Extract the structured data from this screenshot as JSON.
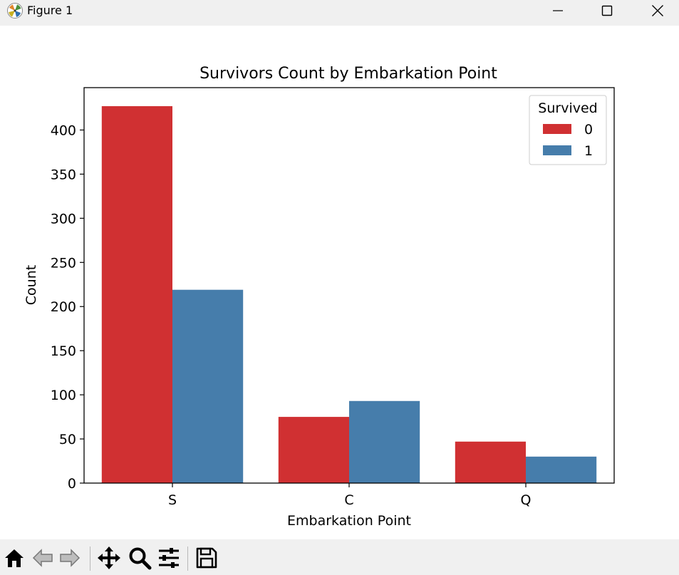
{
  "window": {
    "title": "Figure 1",
    "app_icon": "matplotlib-icon",
    "controls": [
      "minimize-icon",
      "maximize-icon",
      "close-icon"
    ]
  },
  "toolbar": {
    "tools": [
      "home-icon",
      "back-icon",
      "forward-icon",
      "pan-icon",
      "zoom-icon",
      "configure-subplots-icon",
      "save-icon"
    ]
  },
  "chart_data": {
    "type": "bar",
    "title": "Survivors Count by Embarkation Point",
    "xlabel": "Embarkation Point",
    "ylabel": "Count",
    "categories": [
      "S",
      "C",
      "Q"
    ],
    "series": [
      {
        "name": "0",
        "values": [
          427,
          75,
          47
        ],
        "color": "#d03032"
      },
      {
        "name": "1",
        "values": [
          219,
          93,
          30
        ],
        "color": "#467dab"
      }
    ],
    "ylim": [
      0,
      448
    ],
    "yticks": [
      0,
      50,
      100,
      150,
      200,
      250,
      300,
      350,
      400
    ],
    "grid": false,
    "legend": {
      "title": "Survived",
      "placement": "top-right"
    }
  }
}
